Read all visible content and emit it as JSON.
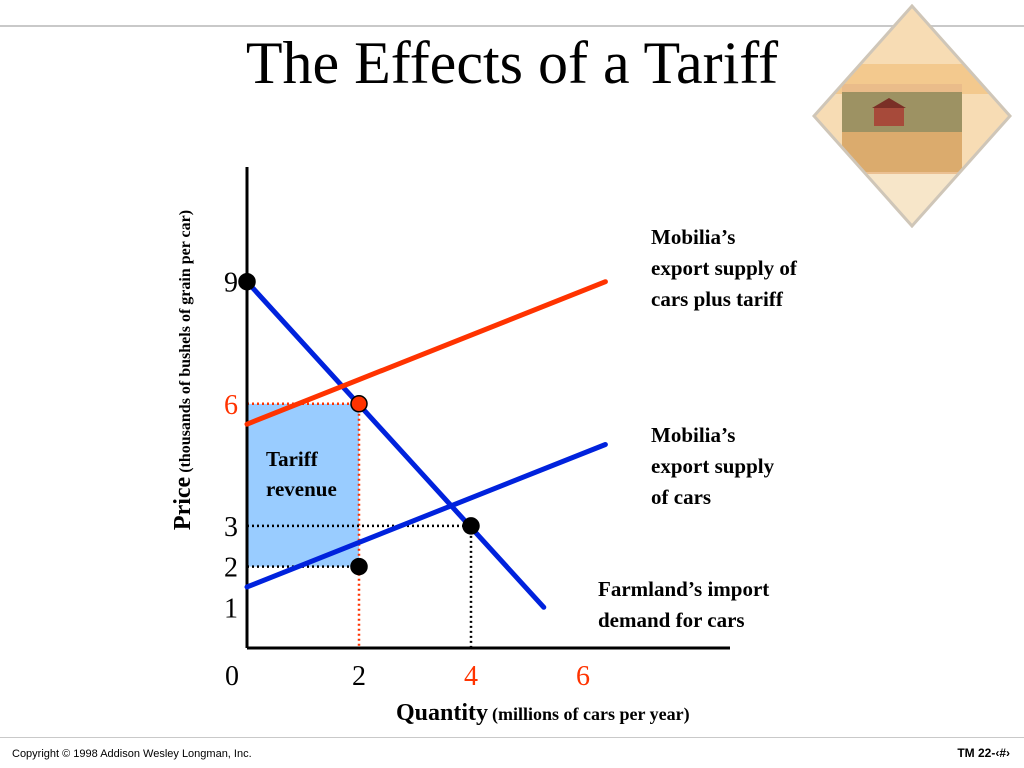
{
  "title": "The Effects of a Tariff",
  "footer": {
    "copyright": "Copyright © 1998 Addison Wesley Longman, Inc.",
    "slide_number": "TM 22-‹#›"
  },
  "colors": {
    "demand": "#0022dd",
    "supply": "#0022dd",
    "supply_plus_tariff": "#ff3300",
    "tariff_revenue_fill": "#99ccff",
    "highlight": "#ff3300"
  },
  "chart_data": {
    "type": "line",
    "ylabel": "Price",
    "ylabel_unit": "(thousands of bushels of grain per car)",
    "xlabel": "Quantity",
    "xlabel_unit": "(millions of cars per year)",
    "xticks": [
      "0",
      "2",
      "4",
      "6"
    ],
    "yticks": [
      "1",
      "2",
      "3",
      "6",
      "9"
    ],
    "highlighted_ticks": [
      "4",
      "6"
    ],
    "xlim": [
      0,
      8
    ],
    "ylim": [
      0,
      10
    ],
    "series": [
      {
        "name": "Farmland’s import demand for cars",
        "points": [
          [
            0,
            9
          ],
          [
            5.3,
            1
          ]
        ]
      },
      {
        "name": "Mobilia’s export supply of cars",
        "points": [
          [
            0,
            1.5
          ],
          [
            6.4,
            5
          ]
        ]
      },
      {
        "name": "Mobilia’s export supply of cars plus tariff",
        "points": [
          [
            0,
            5.5
          ],
          [
            6.4,
            9
          ]
        ]
      }
    ],
    "markers": [
      {
        "x": 0,
        "y": 9,
        "color": "black"
      },
      {
        "x": 2,
        "y": 6,
        "color": "red"
      },
      {
        "x": 4,
        "y": 3,
        "color": "black"
      },
      {
        "x": 2,
        "y": 2,
        "color": "black"
      }
    ],
    "shaded_area": {
      "label": "Tariff revenue",
      "x": [
        0,
        2
      ],
      "y": [
        2,
        6
      ]
    },
    "annotations": {
      "tariff_revenue": "Tariff\nrevenue",
      "supply_plus_tariff": "Mobilia’s\nexport supply of\ncars plus tariff",
      "supply": "Mobilia’s\nexport supply\nof cars",
      "demand": "Farmland’s import\ndemand for cars"
    }
  }
}
